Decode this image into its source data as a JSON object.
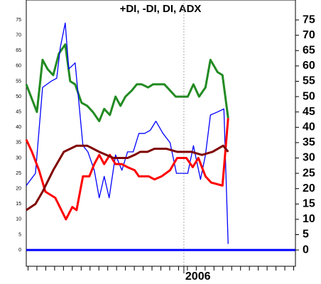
{
  "chart_data": {
    "type": "line",
    "title": "+DI, -DI, DI, ADX",
    "xlim": [
      0,
      152
    ],
    "ylim": [
      -5.3,
      81.5
    ],
    "yticks": [
      0,
      5,
      10,
      15,
      20,
      25,
      30,
      35,
      40,
      45,
      50,
      55,
      60,
      65,
      70,
      75
    ],
    "xticks": [
      1,
      6,
      11,
      16,
      21,
      26,
      31,
      36,
      41,
      46,
      51,
      56,
      61,
      66,
      71,
      76,
      81,
      86,
      {
        "value": 89,
        "label": "2006"
      },
      91,
      96,
      101,
      106,
      111,
      116,
      121,
      126,
      131,
      136,
      141,
      146,
      151
    ],
    "hline": {
      "value": 0,
      "color": "#0000ff"
    },
    "series": [
      {
        "color": "#228b22",
        "width": 3,
        "x": [
          0,
          6,
          9.2,
          12,
          15.2,
          18.4,
          22,
          24.8,
          27.6,
          31.2,
          34.4,
          37.6,
          41.2,
          44,
          47.2,
          50.4,
          53.2,
          56,
          59.6,
          62.4,
          65.2,
          68.8,
          71.6,
          74.8,
          78,
          81.2,
          84.4,
          88,
          91.2,
          94.4,
          97.6,
          101.2,
          104,
          108,
          110.8,
          114
        ],
        "values": [
          54,
          45,
          62,
          59,
          57,
          64,
          67,
          55,
          54,
          48,
          47,
          45,
          42,
          46,
          44,
          50,
          47,
          50,
          52,
          54,
          54,
          53,
          54,
          54,
          54,
          52,
          50,
          50,
          50,
          54,
          50,
          53,
          62,
          58,
          57,
          43
        ]
      },
      {
        "color": "#0000ff",
        "width": 1.3,
        "x": [
          0,
          5.2,
          9.2,
          14,
          17.2,
          19.2,
          22,
          24,
          27.6,
          32,
          34.8,
          38.4,
          41.2,
          44,
          46.8,
          50.4,
          54,
          57.2,
          60.4,
          63.6,
          66.8,
          70,
          73.2,
          77.2,
          81.2,
          84.8,
          88,
          91.2,
          94.4,
          98.4,
          101.2,
          104,
          108,
          111.6,
          114
        ],
        "values": [
          21,
          25,
          53,
          55,
          56,
          66,
          74,
          59,
          61,
          34,
          32,
          26,
          17,
          24,
          17,
          31,
          26,
          32,
          32,
          38,
          38,
          39,
          42,
          38,
          35,
          25,
          25,
          25,
          34,
          23,
          31,
          44,
          45,
          46,
          2
        ]
      },
      {
        "color": "#ff0000",
        "width": 3,
        "x": [
          0,
          3.2,
          7.2,
          10.8,
          16.4,
          22.4,
          26,
          28.4,
          32,
          35.6,
          38.4,
          41.2,
          44,
          47.2,
          50.4,
          54,
          57.2,
          61.2,
          63.6,
          69.2,
          72.4,
          76.4,
          81.2,
          85.2,
          90.4,
          94,
          97.2,
          101.2,
          104.4,
          110.8,
          114
        ],
        "values": [
          36,
          32,
          26,
          19,
          17,
          10,
          14,
          13,
          24,
          24,
          28,
          31,
          28,
          31,
          28,
          28,
          27,
          26,
          24,
          24,
          23,
          24,
          26,
          30,
          30,
          27,
          30,
          24,
          22,
          21,
          43
        ]
      },
      {
        "color": "#800000",
        "width": 3,
        "x": [
          0,
          5.2,
          9.2,
          15.2,
          21.2,
          28.4,
          34.4,
          41.2,
          49.2,
          57.2,
          61.2,
          64.4,
          68.4,
          72.4,
          79.2,
          85.2,
          93.2,
          99.2,
          105.2,
          111.2,
          114
        ],
        "values": [
          13,
          15,
          19,
          26,
          32,
          34,
          34,
          32,
          30,
          30,
          31,
          32,
          32,
          33,
          33,
          32,
          32,
          31,
          32,
          34,
          32
        ]
      }
    ]
  }
}
